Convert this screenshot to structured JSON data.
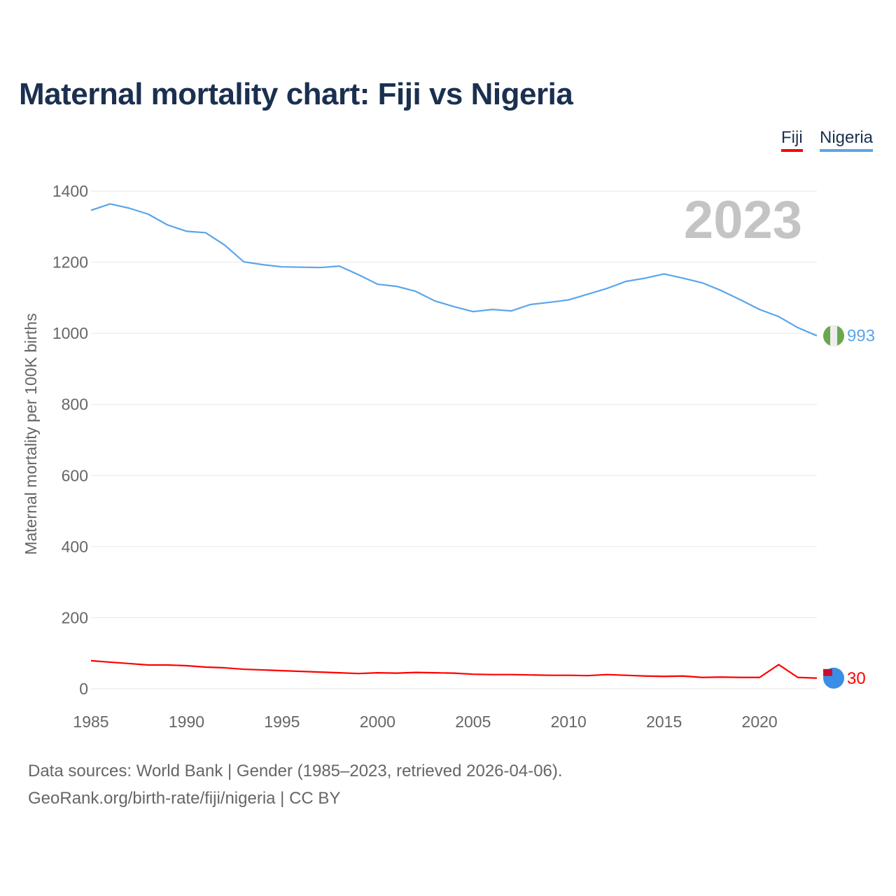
{
  "title": "Maternal mortality chart: Fiji vs Nigeria",
  "legend": {
    "fiji": "Fiji",
    "nigeria": "Nigeria"
  },
  "footer": {
    "sources": "Data sources: World Bank | Gender (1985–2023, retrieved 2026-04-06).",
    "url": "GeoRank.org/birth-rate/fiji/nigeria | CC BY"
  },
  "chart_data": {
    "type": "line",
    "title": "Maternal mortality chart: Fiji vs Nigeria",
    "xlabel": "",
    "ylabel": "Maternal mortality per 100K births",
    "year_label": "2023",
    "xlim": [
      1985,
      2023
    ],
    "ylim": [
      0,
      1400
    ],
    "xticks": [
      1985,
      1990,
      1995,
      2000,
      2005,
      2010,
      2015,
      2020
    ],
    "yticks": [
      0,
      200,
      400,
      600,
      800,
      1000,
      1200,
      1400
    ],
    "grid": true,
    "legend_position": "top-right",
    "x": [
      1985,
      1986,
      1987,
      1988,
      1989,
      1990,
      1991,
      1992,
      1993,
      1994,
      1995,
      1996,
      1997,
      1998,
      1999,
      2000,
      2001,
      2002,
      2003,
      2004,
      2005,
      2006,
      2007,
      2008,
      2009,
      2010,
      2011,
      2012,
      2013,
      2014,
      2015,
      2016,
      2017,
      2018,
      2019,
      2020,
      2021,
      2022,
      2023
    ],
    "series": [
      {
        "name": "Nigeria",
        "color": "#5aa5ec",
        "end_label": "993",
        "values": [
          1346,
          1364,
          1352,
          1335,
          1305,
          1287,
          1283,
          1248,
          1201,
          1193,
          1187,
          1186,
          1185,
          1189,
          1165,
          1138,
          1132,
          1118,
          1091,
          1075,
          1061,
          1067,
          1063,
          1081,
          1087,
          1094,
          1110,
          1126,
          1146,
          1155,
          1167,
          1155,
          1142,
          1120,
          1094,
          1067,
          1047,
          1016,
          993
        ]
      },
      {
        "name": "Fiji",
        "color": "#ff0000",
        "end_label": "30",
        "values": [
          79,
          75,
          71,
          67,
          67,
          65,
          61,
          59,
          55,
          53,
          51,
          49,
          47,
          45,
          43,
          45,
          44,
          46,
          45,
          44,
          41,
          40,
          40,
          39,
          38,
          38,
          37,
          40,
          38,
          36,
          35,
          36,
          32,
          33,
          32,
          32,
          68,
          32,
          30
        ]
      }
    ]
  }
}
